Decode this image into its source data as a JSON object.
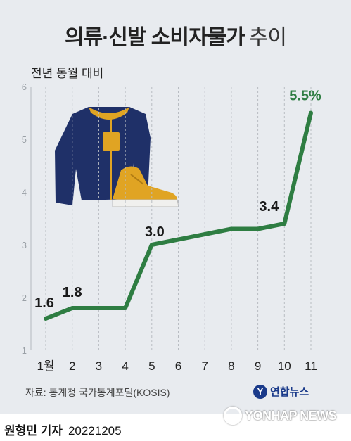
{
  "title": {
    "bold": "의류·신발 소비자물가",
    "light": "추이"
  },
  "subtitle": "전년 동월 대비",
  "source": "자료: 통계청 국가통계포털(KOSIS)",
  "logo_text": "연합뉴스",
  "reporter": {
    "name": "원형민 기자",
    "date": "20221205"
  },
  "watermark": "YONHAP NEWS",
  "colors": {
    "line": "#2e7d42",
    "highlight_label": "#2e7d42",
    "background": "#e8ebef",
    "jacket": "#1f3068",
    "shoe": "#e0a423"
  },
  "icons": [
    "jacket-icon",
    "sneaker-icon"
  ],
  "chart_data": {
    "type": "line",
    "title": "의류·신발 소비자물가 추이",
    "subtitle": "전년 동월 대비",
    "categories": [
      "1월",
      "2",
      "3",
      "4",
      "5",
      "6",
      "7",
      "8",
      "9",
      "10",
      "11"
    ],
    "y_ticks": [
      "1",
      "2",
      "3",
      "4",
      "5",
      "6"
    ],
    "values": [
      1.6,
      1.8,
      1.8,
      1.8,
      3.0,
      3.1,
      3.2,
      3.3,
      3.3,
      3.4,
      5.5
    ],
    "ylim": [
      1,
      6
    ],
    "grid": "vertical dashed",
    "data_labels": [
      {
        "index": 0,
        "text": "1.6"
      },
      {
        "index": 1,
        "text": "1.8"
      },
      {
        "index": 4,
        "text": "3.0"
      },
      {
        "index": 9,
        "text": "3.4"
      },
      {
        "index": 10,
        "text": "5.5%"
      }
    ]
  }
}
